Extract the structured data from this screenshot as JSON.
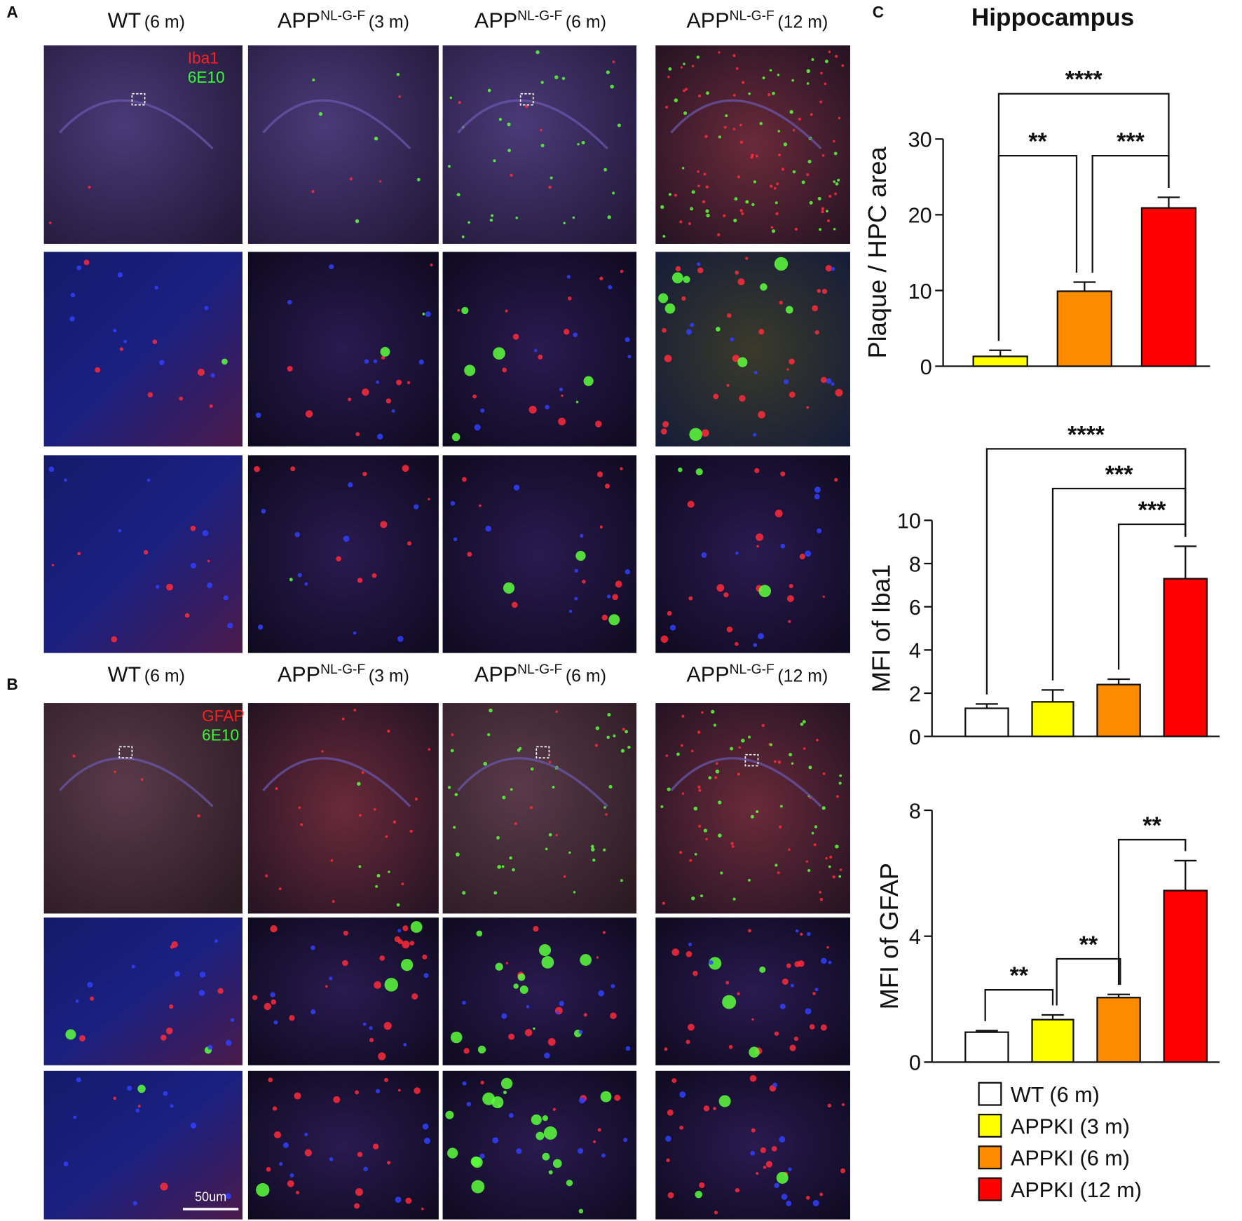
{
  "panel_labels": [
    "A",
    "B",
    "C"
  ],
  "columns": [
    {
      "base": "WT",
      "age": "(6 m)"
    },
    {
      "base": "APP",
      "sup": "NL-G-F",
      "age": "(3 m)"
    },
    {
      "base": "APP",
      "sup": "NL-G-F",
      "age": "(6 m)"
    },
    {
      "base": "APP",
      "sup": "NL-G-F",
      "age": "(12 m)"
    }
  ],
  "stains_A": [
    "Iba1",
    "6E10"
  ],
  "stains_B": [
    "GFAP",
    "6E10"
  ],
  "scale_bar": "50um",
  "legend": [
    {
      "name": "WT (6 m)",
      "color": "#ffffff"
    },
    {
      "name": "APPKI (3 m)",
      "color": "#ffff00"
    },
    {
      "name": "APPKI (6 m)",
      "color": "#ff8c00"
    },
    {
      "name": "APPKI (12 m)",
      "color": "#ff0000"
    }
  ],
  "chart_data": [
    {
      "type": "bar",
      "title": "Hippocampus",
      "y_label": "Plaque / HPC area",
      "values": [
        1.3,
        9.9,
        20.9
      ],
      "errors": [
        0.8,
        1.2,
        1.4
      ],
      "colors": [
        "#ffff00",
        "#ff8c00",
        "#ff0000"
      ],
      "ylim": [
        0,
        30
      ],
      "yticks": [
        0,
        10,
        20,
        30
      ],
      "annotations": [
        "**",
        "***",
        "****"
      ]
    },
    {
      "type": "bar",
      "y_label": "MFI of Iba1",
      "values": [
        1.3,
        1.6,
        2.4,
        7.3
      ],
      "errors": [
        0.2,
        0.55,
        0.25,
        1.5
      ],
      "colors": [
        "#ffffff",
        "#ffff00",
        "#ff8c00",
        "#ff0000"
      ],
      "ylim": [
        0,
        10
      ],
      "yticks": [
        0,
        2,
        4,
        6,
        8,
        10
      ],
      "annotations": [
        "****",
        "***",
        "***"
      ]
    },
    {
      "type": "bar",
      "y_label": "MFI of GFAP",
      "values": [
        0.95,
        1.35,
        2.05,
        5.45
      ],
      "errors": [
        0.05,
        0.15,
        0.1,
        0.95
      ],
      "colors": [
        "#ffffff",
        "#ffff00",
        "#ff8c00",
        "#ff0000"
      ],
      "ylim": [
        0,
        8
      ],
      "yticks": [
        0,
        4,
        8
      ],
      "annotations": [
        "**",
        "**",
        "**"
      ]
    }
  ]
}
